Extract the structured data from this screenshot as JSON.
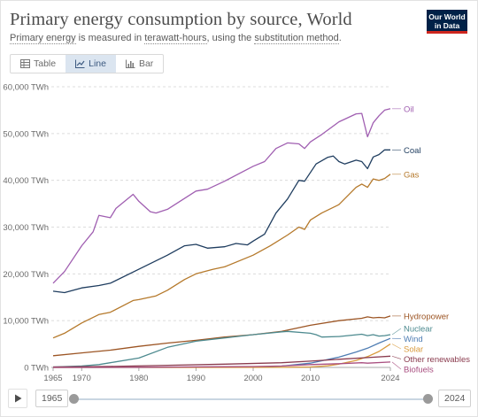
{
  "header": {
    "title": "Primary energy consumption by source, World",
    "subtitle_parts": [
      "Primary energy",
      " is measured in ",
      "terawatt-hours",
      ", using the ",
      "substitution method",
      "."
    ],
    "logo_line1": "Our World",
    "logo_line2": "in Data"
  },
  "tabs": [
    {
      "label": "Table",
      "icon": "table-icon",
      "active": false
    },
    {
      "label": "Line",
      "icon": "line-chart-icon",
      "active": true
    },
    {
      "label": "Bar",
      "icon": "bar-chart-icon",
      "active": false
    }
  ],
  "timeline": {
    "start_year": "1965",
    "end_year": "2024"
  },
  "colors": {
    "accent": "#dbe5f0",
    "logo_bg": "#002147",
    "logo_accent": "#ce261e"
  },
  "chart_data": {
    "type": "line",
    "x_ticks": [
      1965,
      1970,
      1980,
      1990,
      2000,
      2010,
      2024
    ],
    "y_ticks": [
      {
        "value": 0,
        "label": "0 TWh"
      },
      {
        "value": 10000,
        "label": "10,000 TWh"
      },
      {
        "value": 20000,
        "label": "20,000 TWh"
      },
      {
        "value": 30000,
        "label": "30,000 TWh"
      },
      {
        "value": 40000,
        "label": "40,000 TWh"
      },
      {
        "value": 50000,
        "label": "50,000 TWh"
      },
      {
        "value": 60000,
        "label": "60,000 TWh"
      }
    ],
    "xlim": [
      1965,
      2024
    ],
    "ylim": [
      0,
      60000
    ],
    "grid": "horizontal dashed",
    "legend": "right, inline labels",
    "series": [
      {
        "name": "Oil",
        "color": "#a05fb1",
        "points": [
          [
            1965,
            18000
          ],
          [
            1967,
            20500
          ],
          [
            1970,
            26000
          ],
          [
            1972,
            29000
          ],
          [
            1973,
            32500
          ],
          [
            1975,
            32000
          ],
          [
            1976,
            34000
          ],
          [
            1979,
            37000
          ],
          [
            1980,
            35500
          ],
          [
            1982,
            33300
          ],
          [
            1983,
            33000
          ],
          [
            1985,
            33800
          ],
          [
            1990,
            37700
          ],
          [
            1992,
            38100
          ],
          [
            1995,
            39800
          ],
          [
            2000,
            43000
          ],
          [
            2002,
            44000
          ],
          [
            2004,
            46800
          ],
          [
            2006,
            48000
          ],
          [
            2008,
            47800
          ],
          [
            2009,
            46800
          ],
          [
            2010,
            48200
          ],
          [
            2012,
            49800
          ],
          [
            2015,
            52500
          ],
          [
            2018,
            54200
          ],
          [
            2019,
            54300
          ],
          [
            2020,
            49300
          ],
          [
            2021,
            52300
          ],
          [
            2022,
            53800
          ],
          [
            2023,
            55000
          ],
          [
            2024,
            55300
          ]
        ]
      },
      {
        "name": "Coal",
        "color": "#1f3d5f",
        "points": [
          [
            1965,
            16300
          ],
          [
            1967,
            16000
          ],
          [
            1970,
            17000
          ],
          [
            1973,
            17500
          ],
          [
            1975,
            18000
          ],
          [
            1980,
            21000
          ],
          [
            1985,
            24000
          ],
          [
            1988,
            26000
          ],
          [
            1990,
            26300
          ],
          [
            1992,
            25500
          ],
          [
            1995,
            25800
          ],
          [
            1997,
            26500
          ],
          [
            1999,
            26200
          ],
          [
            2000,
            27000
          ],
          [
            2002,
            28500
          ],
          [
            2004,
            33000
          ],
          [
            2006,
            36000
          ],
          [
            2008,
            40000
          ],
          [
            2009,
            39800
          ],
          [
            2011,
            43500
          ],
          [
            2013,
            44900
          ],
          [
            2014,
            45200
          ],
          [
            2015,
            44000
          ],
          [
            2016,
            43500
          ],
          [
            2018,
            44300
          ],
          [
            2019,
            44000
          ],
          [
            2020,
            42500
          ],
          [
            2021,
            45000
          ],
          [
            2022,
            45500
          ],
          [
            2023,
            46500
          ],
          [
            2024,
            46500
          ]
        ]
      },
      {
        "name": "Gas",
        "color": "#b5792b",
        "points": [
          [
            1965,
            6300
          ],
          [
            1967,
            7300
          ],
          [
            1970,
            9500
          ],
          [
            1973,
            11300
          ],
          [
            1975,
            11800
          ],
          [
            1979,
            14300
          ],
          [
            1980,
            14500
          ],
          [
            1983,
            15300
          ],
          [
            1985,
            16500
          ],
          [
            1988,
            18800
          ],
          [
            1990,
            20000
          ],
          [
            1993,
            21000
          ],
          [
            1995,
            21500
          ],
          [
            2000,
            24000
          ],
          [
            2003,
            26000
          ],
          [
            2006,
            28300
          ],
          [
            2008,
            30000
          ],
          [
            2009,
            29500
          ],
          [
            2010,
            31500
          ],
          [
            2012,
            33000
          ],
          [
            2015,
            34800
          ],
          [
            2018,
            38500
          ],
          [
            2019,
            39200
          ],
          [
            2020,
            38500
          ],
          [
            2021,
            40300
          ],
          [
            2022,
            40000
          ],
          [
            2023,
            40400
          ],
          [
            2024,
            41300
          ]
        ]
      },
      {
        "name": "Hydropower",
        "color": "#9c5524",
        "points": [
          [
            1965,
            2500
          ],
          [
            1970,
            3100
          ],
          [
            1975,
            3700
          ],
          [
            1980,
            4500
          ],
          [
            1985,
            5200
          ],
          [
            1990,
            5800
          ],
          [
            1995,
            6500
          ],
          [
            2000,
            7000
          ],
          [
            2005,
            7700
          ],
          [
            2010,
            9000
          ],
          [
            2015,
            10000
          ],
          [
            2019,
            10500
          ],
          [
            2020,
            10800
          ],
          [
            2021,
            10600
          ],
          [
            2022,
            10700
          ],
          [
            2023,
            10600
          ],
          [
            2024,
            11000
          ]
        ]
      },
      {
        "name": "Nuclear",
        "color": "#4d8a8f",
        "points": [
          [
            1965,
            100
          ],
          [
            1970,
            300
          ],
          [
            1973,
            600
          ],
          [
            1975,
            1000
          ],
          [
            1980,
            2000
          ],
          [
            1985,
            4300
          ],
          [
            1990,
            5600
          ],
          [
            1995,
            6300
          ],
          [
            2000,
            7000
          ],
          [
            2005,
            7600
          ],
          [
            2006,
            7700
          ],
          [
            2010,
            7300
          ],
          [
            2011,
            7000
          ],
          [
            2012,
            6500
          ],
          [
            2015,
            6600
          ],
          [
            2019,
            7100
          ],
          [
            2020,
            6800
          ],
          [
            2021,
            7000
          ],
          [
            2022,
            6700
          ],
          [
            2023,
            6800
          ],
          [
            2024,
            7000
          ]
        ]
      },
      {
        "name": "Wind",
        "color": "#4f7db3",
        "points": [
          [
            1965,
            0
          ],
          [
            1995,
            20
          ],
          [
            2000,
            80
          ],
          [
            2005,
            280
          ],
          [
            2010,
            900
          ],
          [
            2015,
            2200
          ],
          [
            2018,
            3300
          ],
          [
            2020,
            4100
          ],
          [
            2022,
            5200
          ],
          [
            2024,
            6200
          ]
        ]
      },
      {
        "name": "Solar",
        "color": "#d99a3c",
        "points": [
          [
            1965,
            0
          ],
          [
            2005,
            10
          ],
          [
            2010,
            90
          ],
          [
            2013,
            350
          ],
          [
            2015,
            700
          ],
          [
            2018,
            1500
          ],
          [
            2020,
            2300
          ],
          [
            2022,
            3400
          ],
          [
            2024,
            5000
          ]
        ]
      },
      {
        "name": "Other renewables",
        "color": "#8a3b4e",
        "points": [
          [
            1965,
            100
          ],
          [
            1975,
            200
          ],
          [
            1985,
            450
          ],
          [
            1995,
            700
          ],
          [
            2005,
            1000
          ],
          [
            2010,
            1350
          ],
          [
            2015,
            1750
          ],
          [
            2020,
            2100
          ],
          [
            2024,
            2400
          ]
        ]
      },
      {
        "name": "Biofuels",
        "color": "#a94f80",
        "points": [
          [
            1965,
            0
          ],
          [
            1980,
            40
          ],
          [
            1990,
            110
          ],
          [
            2000,
            180
          ],
          [
            2005,
            300
          ],
          [
            2010,
            600
          ],
          [
            2015,
            800
          ],
          [
            2019,
            1000
          ],
          [
            2020,
            900
          ],
          [
            2024,
            1150
          ]
        ]
      }
    ],
    "label_offsets_note": "inline labels sit at series end"
  }
}
